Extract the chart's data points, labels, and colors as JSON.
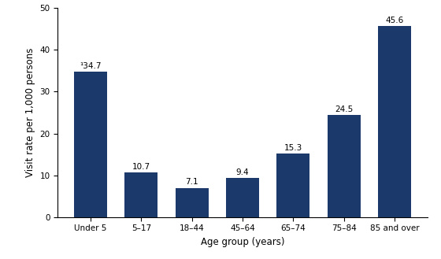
{
  "categories": [
    "Under 5",
    "5–17",
    "18–44",
    "45–64",
    "65–74",
    "75–84",
    "85 and over"
  ],
  "values": [
    34.7,
    10.7,
    7.1,
    9.4,
    15.3,
    24.5,
    45.6
  ],
  "bar_color": "#1b3a6b",
  "bar_labels": [
    "¹34.7",
    "10.7",
    "7.1",
    "9.4",
    "15.3",
    "24.5",
    "45.6"
  ],
  "xlabel": "Age group (years)",
  "ylabel": "Visit rate per 1,000 persons",
  "ylim": [
    0,
    50
  ],
  "yticks": [
    0,
    10,
    20,
    30,
    40,
    50
  ],
  "label_fontsize": 7.5,
  "tick_fontsize": 7.5,
  "axis_label_fontsize": 8.5,
  "bar_width": 0.65
}
